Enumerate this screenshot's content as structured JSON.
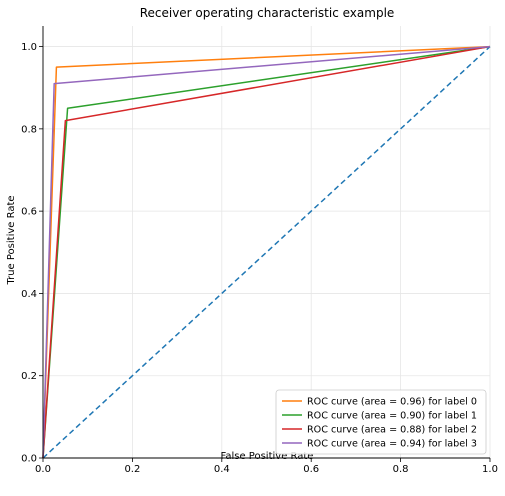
{
  "chart_data": {
    "type": "line",
    "title": "Receiver operating characteristic example",
    "xlabel": "False Positive Rate",
    "ylabel": "True Positive Rate",
    "xlim": [
      0,
      1
    ],
    "ylim": [
      0,
      1.05
    ],
    "grid": true,
    "legend_position": "lower-right",
    "x_ticks": [
      "0.0",
      "0.2",
      "0.4",
      "0.6",
      "0.8",
      "1.0"
    ],
    "y_ticks": [
      "0.0",
      "0.2",
      "0.4",
      "0.6",
      "0.8",
      "1.0"
    ],
    "series": [
      {
        "name": "ROC curve (area = 0.96) for label 0",
        "color": "#ff7f0e",
        "x": [
          0,
          0.03,
          1
        ],
        "y": [
          0,
          0.95,
          1
        ]
      },
      {
        "name": "ROC curve (area = 0.90) for label 1",
        "color": "#2ca02c",
        "x": [
          0,
          0.055,
          1
        ],
        "y": [
          0,
          0.85,
          1
        ]
      },
      {
        "name": "ROC curve (area = 0.88) for label 2",
        "color": "#d62728",
        "x": [
          0,
          0.05,
          1
        ],
        "y": [
          0,
          0.82,
          1
        ]
      },
      {
        "name": "ROC curve (area = 0.94) for label 3",
        "color": "#9467bd",
        "x": [
          0,
          0.025,
          1
        ],
        "y": [
          0,
          0.91,
          1
        ]
      }
    ],
    "reference_line": {
      "x": [
        0,
        1
      ],
      "y": [
        0,
        1
      ],
      "color": "#1f77b4",
      "style": "dashed"
    }
  }
}
